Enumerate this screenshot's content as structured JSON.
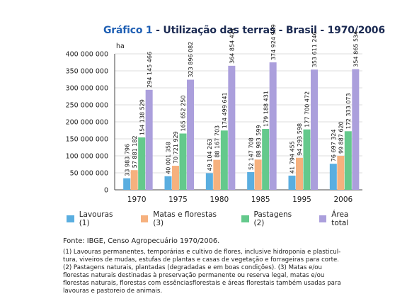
{
  "header": {
    "title_prefix": "Gráfico 1",
    "title_text": " - Utilização das terras - Brasil - 1970/2006"
  },
  "chart_data": {
    "type": "bar",
    "title": "Gráfico 1 - Utilização das terras - Brasil - 1970/2006",
    "ylabel": "ha",
    "xlabel": "",
    "ylim": [
      0,
      400000000
    ],
    "yticks": [
      0,
      50000000,
      100000000,
      150000000,
      200000000,
      250000000,
      300000000,
      350000000,
      400000000
    ],
    "ytick_labels": [
      "0",
      "50 000 000",
      "100 000 000",
      "150 000 000",
      "200 000 000",
      "250 000 000",
      "300 000 000",
      "350 000 000",
      "400 000 000"
    ],
    "categories": [
      "1970",
      "1975",
      "1980",
      "1985",
      "1995",
      "2006"
    ],
    "series": [
      {
        "name": "Lavouras (1)",
        "color": "#5aaee0",
        "values": [
          33983796,
          40001358,
          49104263,
          52147708,
          41794455,
          76697324
        ],
        "labels": [
          "33 983 796",
          "40 001 358",
          "49 104 263",
          "52 147 708",
          "41 794 455",
          "76 697 324"
        ]
      },
      {
        "name": "Matas e florestas (3)",
        "color": "#f6b17e",
        "values": [
          57881182,
          70721929,
          88167703,
          88983599,
          94293598,
          99887620
        ],
        "labels": [
          "57 881 182",
          "70 721 929",
          "88 167 703",
          "88 983 599",
          "94 293 598",
          "99 887 620"
        ]
      },
      {
        "name": "Pastagens (2)",
        "color": "#64c98c",
        "values": [
          154138529,
          165652250,
          174499641,
          179188431,
          177700472,
          172333073
        ],
        "labels": [
          "154 138 529",
          "165 652 250",
          "174 499 641",
          "179 188 431",
          "177 700 472",
          "172 333 073"
        ]
      },
      {
        "name": "Área total",
        "color": "#ab9fdc",
        "values": [
          294145466,
          323896082,
          364854421,
          374924929,
          353611246,
          354865534
        ],
        "labels": [
          "294 145 466",
          "323 896 082",
          "364 854 421",
          "374 924 929",
          "353 611 246",
          "354 865 534"
        ]
      }
    ],
    "grid": true,
    "legend_position": "bottom"
  },
  "footer": {
    "source": "Fonte: IBGE, Censo Agropecuário 1970/2006.",
    "notes": [
      "(1) Lavouras permanentes, temporárias e cultivo de flores, inclusive hidroponia e plasticul-",
      "tura, viveiros de mudas, estufas de plantas e casas de vegetação e forrageiras para corte.",
      "(2) Pastagens naturais, plantadas (degradadas e em boas condições). (3) Matas e/ou",
      "florestas naturais  destinadas à preservação permanente ou reserva legal, matas e/ou",
      "florestas naturais, florestas com essênciasflorestais e áreas florestais também usadas para",
      "lavouras e pastoreio de animais."
    ]
  }
}
